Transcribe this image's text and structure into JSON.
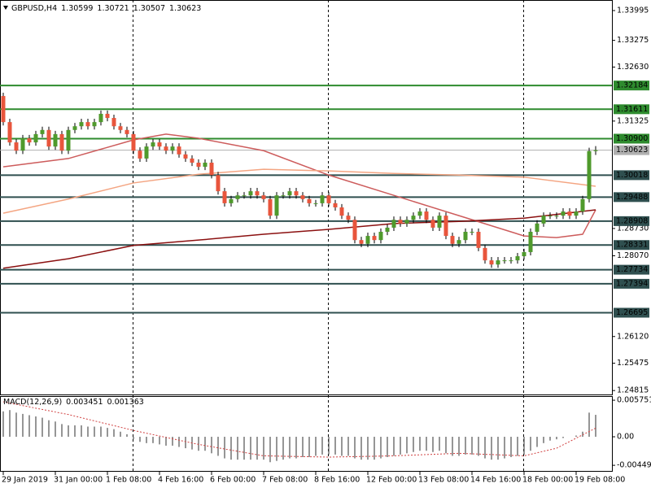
{
  "chart_data": {
    "type": "candlestick",
    "symbol": "GBPUSD,H4",
    "up_color": "#4f9a2c",
    "down_color": "#e8553c",
    "ylim": [
      1.2472,
      1.3425
    ],
    "yticks": [
      1.33995,
      1.33275,
      {
        "value": 1.3263,
        "label": "1.32630"
      },
      1.31325,
      {
        "value": 1.2873,
        "label": "1.28730"
      },
      {
        "value": 1.2807,
        "label": "1.28070"
      },
      {
        "value": 1.2612,
        "label": "1.26120"
      },
      1.25475,
      1.24815
    ],
    "categories": [
      "29 Jan 2019",
      null,
      null,
      null,
      null,
      null,
      null,
      null,
      "31 Jan 00:00",
      null,
      null,
      null,
      null,
      null,
      null,
      null,
      "1 Feb 08:00",
      null,
      null,
      null,
      null,
      null,
      null,
      null,
      "4 Feb 16:00",
      null,
      null,
      null,
      null,
      null,
      null,
      null,
      "6 Feb 00:00",
      null,
      null,
      null,
      null,
      null,
      null,
      null,
      "7 Feb 08:00",
      null,
      null,
      null,
      null,
      null,
      null,
      null,
      "8 Feb 16:00",
      null,
      null,
      null,
      null,
      null,
      null,
      null,
      "12 Feb 00:00",
      null,
      null,
      null,
      null,
      null,
      null,
      null,
      "13 Feb 08:00",
      null,
      null,
      null,
      null,
      null,
      null,
      null,
      "14 Feb 16:00",
      null,
      null,
      null,
      null,
      null,
      null,
      null,
      "18 Feb 00:00",
      null,
      null,
      null,
      null,
      null,
      null,
      null,
      "19 Feb 08:00",
      null,
      null,
      null
    ],
    "open": [
      1.3193,
      1.313,
      1.3081,
      1.3061,
      1.3091,
      1.3081,
      1.3101,
      1.3111,
      1.3071,
      1.3101,
      1.3061,
      1.3111,
      1.312,
      1.313,
      1.312,
      1.313,
      1.315,
      1.314,
      1.312,
      1.3111,
      1.3101,
      1.3061,
      1.3042,
      1.3071,
      1.3081,
      1.3071,
      1.3061,
      1.3071,
      1.3052,
      1.3042,
      1.3032,
      1.3022,
      1.3032,
      1.3002,
      1.2963,
      1.2934,
      1.2944,
      1.2953,
      1.2953,
      1.2963,
      1.2953,
      1.2944,
      1.2904,
      1.2953,
      1.2953,
      1.2963,
      1.2953,
      1.2944,
      1.2934,
      1.2934,
      1.2953,
      1.2934,
      1.2924,
      1.2904,
      1.2894,
      1.2845,
      1.2836,
      1.2855,
      1.2845,
      1.2865,
      1.2875,
      1.2894,
      1.2885,
      1.2894,
      1.2904,
      1.2914,
      1.2894,
      1.2875,
      1.2904,
      1.2855,
      1.2836,
      1.2845,
      1.2865,
      1.2865,
      1.2826,
      1.2796,
      1.2786,
      1.2796,
      1.2796,
      1.2796,
      1.2806,
      1.2816,
      1.2865,
      1.2885,
      1.2904,
      1.2904,
      1.2904,
      1.2914,
      1.2904,
      1.2914,
      1.2944,
      1.30599
    ],
    "high": [
      1.3201,
      1.3138,
      1.3089,
      1.3099,
      1.3099,
      1.3109,
      1.3119,
      1.3119,
      1.3109,
      1.3109,
      1.3119,
      1.3128,
      1.3138,
      1.3138,
      1.3138,
      1.3158,
      1.3158,
      1.3148,
      1.3128,
      1.3119,
      1.3109,
      1.3069,
      1.3079,
      1.3089,
      1.3089,
      1.3079,
      1.3079,
      1.3079,
      1.306,
      1.305,
      1.304,
      1.304,
      1.304,
      1.301,
      1.2971,
      1.2952,
      1.2961,
      1.2961,
      1.2971,
      1.2971,
      1.2961,
      1.2952,
      1.2961,
      1.2961,
      1.2971,
      1.2971,
      1.2961,
      1.2952,
      1.2942,
      1.2961,
      1.2961,
      1.2942,
      1.2932,
      1.2912,
      1.2902,
      1.2853,
      1.2863,
      1.2863,
      1.2873,
      1.2883,
      1.2902,
      1.2902,
      1.2902,
      1.2912,
      1.2922,
      1.2922,
      1.2902,
      1.2912,
      1.2912,
      1.2863,
      1.2853,
      1.2873,
      1.2873,
      1.2873,
      1.2834,
      1.2804,
      1.2804,
      1.2804,
      1.2804,
      1.2814,
      1.2824,
      1.2873,
      1.2893,
      1.2912,
      1.2912,
      1.2912,
      1.2922,
      1.2922,
      1.2922,
      1.2952,
      1.3068,
      1.30721
    ],
    "low": [
      1.3122,
      1.3073,
      1.3053,
      1.3053,
      1.3073,
      1.3073,
      1.3093,
      1.3063,
      1.3063,
      1.3053,
      1.3053,
      1.3103,
      1.3112,
      1.3112,
      1.3112,
      1.3122,
      1.3132,
      1.3112,
      1.3103,
      1.3093,
      1.3053,
      1.3034,
      1.3034,
      1.3063,
      1.3063,
      1.3053,
      1.3053,
      1.3044,
      1.3034,
      1.3024,
      1.3014,
      1.3014,
      1.2994,
      1.2955,
      1.2926,
      1.2926,
      1.2936,
      1.2945,
      1.2945,
      1.2945,
      1.2936,
      1.2896,
      1.2896,
      1.2945,
      1.2945,
      1.2945,
      1.2936,
      1.2926,
      1.2926,
      1.2926,
      1.2926,
      1.2916,
      1.2896,
      1.2886,
      1.2837,
      1.2828,
      1.2828,
      1.2837,
      1.2837,
      1.2857,
      1.2867,
      1.2877,
      1.2877,
      1.2886,
      1.2896,
      1.2886,
      1.2867,
      1.2867,
      1.2847,
      1.2828,
      1.2828,
      1.2837,
      1.2857,
      1.2818,
      1.2788,
      1.2778,
      1.2778,
      1.2788,
      1.2788,
      1.2788,
      1.2798,
      1.2808,
      1.2857,
      1.2877,
      1.2896,
      1.2896,
      1.2896,
      1.2896,
      1.2896,
      1.2906,
      1.2936,
      1.30507
    ],
    "close": [
      1.313,
      1.3081,
      1.3061,
      1.3091,
      1.3081,
      1.3101,
      1.3111,
      1.3071,
      1.3101,
      1.3061,
      1.3111,
      1.312,
      1.313,
      1.312,
      1.313,
      1.315,
      1.314,
      1.312,
      1.3111,
      1.3101,
      1.3061,
      1.3042,
      1.3071,
      1.3081,
      1.3071,
      1.3061,
      1.3071,
      1.3052,
      1.3042,
      1.3032,
      1.3022,
      1.3032,
      1.3002,
      1.2963,
      1.2934,
      1.2944,
      1.2953,
      1.2953,
      1.2963,
      1.2953,
      1.2944,
      1.2904,
      1.2953,
      1.2953,
      1.2963,
      1.2953,
      1.2944,
      1.2934,
      1.2934,
      1.2953,
      1.2934,
      1.2924,
      1.2904,
      1.2894,
      1.2845,
      1.2836,
      1.2855,
      1.2845,
      1.2865,
      1.2875,
      1.2894,
      1.2885,
      1.2894,
      1.2904,
      1.2914,
      1.2894,
      1.2875,
      1.2904,
      1.2855,
      1.2836,
      1.2845,
      1.2865,
      1.2865,
      1.2826,
      1.2796,
      1.2786,
      1.2796,
      1.2796,
      1.2796,
      1.2806,
      1.2816,
      1.2865,
      1.2885,
      1.2904,
      1.2904,
      1.2904,
      1.2914,
      1.2904,
      1.2914,
      1.2944,
      1.306,
      1.30623
    ],
    "ma_lines": [
      {
        "color": "#cd5c5c",
        "x": [
          0,
          10,
          20,
          25,
          30,
          40,
          50,
          60,
          70,
          80,
          85,
          89,
          91
        ],
        "values": [
          1.3022,
          1.3042,
          1.3087,
          1.3101,
          1.3091,
          1.3061,
          1.3002,
          1.2953,
          1.2904,
          1.2855,
          1.2851,
          1.2859,
          1.2918
        ]
      },
      {
        "color": "#f4a582",
        "x": [
          0,
          10,
          20,
          30,
          40,
          50,
          60,
          70,
          80,
          91
        ],
        "values": [
          1.291,
          1.2944,
          1.2983,
          1.3004,
          1.3016,
          1.3012,
          1.3006,
          1.3002,
          1.2997,
          1.2975
        ]
      },
      {
        "color": "#8b1010",
        "x": [
          0,
          10,
          20,
          30,
          40,
          50,
          60,
          70,
          80,
          91
        ],
        "values": [
          1.2777,
          1.28,
          1.2832,
          1.2845,
          1.2859,
          1.2871,
          1.2885,
          1.289,
          1.2898,
          1.2918
        ]
      }
    ],
    "levels": [
      {
        "value": 1.32184,
        "color": "#2e8b2e",
        "text_color": "#ffffff"
      },
      {
        "value": 1.31611,
        "color": "#2e8b2e",
        "text_color": "#ffffff"
      },
      {
        "value": {
          "value": 1.309,
          "label": "1.30900"
        },
        "color": "#2e8b2e",
        "text_color": "#ffffff"
      },
      {
        "value": 1.30623,
        "color": "#b0b0b0",
        "text_color": "#000000"
      },
      {
        "value": 1.30018,
        "color": "#2f4f4f",
        "text_color": "#ffffff"
      },
      {
        "value": 1.29488,
        "color": "#2f4f4f",
        "text_color": "#ffffff"
      },
      {
        "value": 1.28908,
        "color": "#2f4f4f",
        "text_color": "#ffffff"
      },
      {
        "value": 1.28331,
        "color": "#2f4f4f",
        "text_color": "#ffffff"
      },
      {
        "value": 1.27734,
        "color": "#2f4f4f",
        "text_color": "#ffffff"
      },
      {
        "value": 1.27394,
        "color": "#2f4f4f",
        "text_color": "#ffffff"
      },
      {
        "value": 1.26695,
        "color": "#2f4f4f",
        "text_color": "#ffffff"
      }
    ],
    "macd": {
      "title": "MACD(12,26,9)",
      "ylim": [
        -0.0055,
        0.0064
      ],
      "yticks": [
        0.005751,
        {
          "value": 0,
          "label": "0.00"
        },
        -0.00449
      ],
      "histogram": [
        0.004,
        0.0042,
        0.0038,
        0.0036,
        0.0034,
        0.0032,
        0.003,
        0.0026,
        0.0024,
        0.002,
        0.0018,
        0.0018,
        0.0018,
        0.0016,
        0.0016,
        0.0016,
        0.0014,
        0.0012,
        0.0008,
        0.0004,
        -0.0004,
        -0.0008,
        -0.001,
        -0.001,
        -0.0012,
        -0.0014,
        -0.0014,
        -0.0016,
        -0.0018,
        -0.002,
        -0.0022,
        -0.0022,
        -0.0026,
        -0.003,
        -0.0034,
        -0.0036,
        -0.0036,
        -0.0036,
        -0.0036,
        -0.0036,
        -0.0036,
        -0.004,
        -0.0038,
        -0.0036,
        -0.0034,
        -0.0034,
        -0.0032,
        -0.0032,
        -0.003,
        -0.0028,
        -0.0028,
        -0.0028,
        -0.003,
        -0.003,
        -0.0034,
        -0.0036,
        -0.0036,
        -0.0036,
        -0.0034,
        -0.0032,
        -0.003,
        -0.0028,
        -0.0026,
        -0.0024,
        -0.0022,
        -0.0022,
        -0.0024,
        -0.0022,
        -0.0026,
        -0.003,
        -0.003,
        -0.0028,
        -0.0028,
        -0.003,
        -0.0034,
        -0.0036,
        -0.0036,
        -0.0034,
        -0.0032,
        -0.003,
        -0.0028,
        -0.0022,
        -0.0016,
        -0.001,
        -0.0006,
        -0.0004,
        -0.0002,
        0,
        0.0002,
        0.0008,
        0.0038,
        0.003451
      ],
      "histogram_color": "#505050",
      "signal": {
        "color": "#d04040",
        "x": [
          0,
          10,
          20,
          30,
          40,
          50,
          60,
          70,
          80,
          85,
          91
        ],
        "values": [
          0.0055,
          0.0035,
          0.001,
          -0.0012,
          -0.003,
          -0.0032,
          -0.003,
          -0.0026,
          -0.003,
          -0.0018,
          0.001363
        ]
      }
    }
  }
}
